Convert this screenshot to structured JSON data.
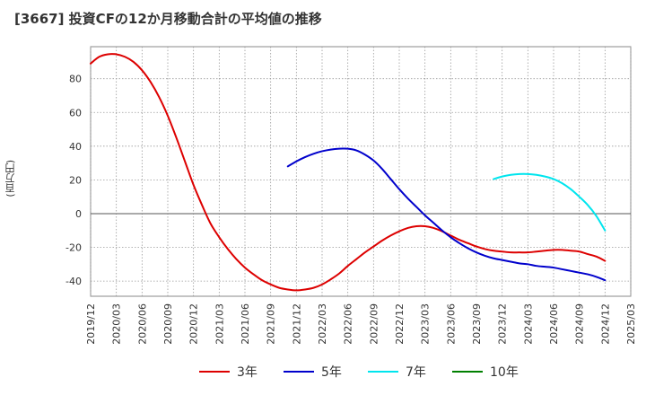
{
  "title": "[3667]  投資CFの12か月移動合計の平均値の推移",
  "chart_data": {
    "type": "line",
    "title": "[3667]  投資CFの12か月移動合計の平均値の推移",
    "ylabel": "(百万円)",
    "xlabel": "",
    "ylim": [
      -49,
      99
    ],
    "yticks": [
      -40,
      -20,
      0,
      20,
      40,
      60,
      80
    ],
    "xlim": [
      "2019/12",
      "2025/03"
    ],
    "xticks": [
      "2019/12",
      "2020/03",
      "2020/06",
      "2020/09",
      "2020/12",
      "2021/03",
      "2021/06",
      "2021/09",
      "2021/12",
      "2022/03",
      "2022/06",
      "2022/09",
      "2022/12",
      "2023/03",
      "2023/06",
      "2023/09",
      "2023/12",
      "2024/03",
      "2024/06",
      "2024/09",
      "2024/12",
      "2025/03"
    ],
    "grid": true,
    "legend_position": "bottom",
    "series": [
      {
        "name": "3年",
        "color": "#dd0000",
        "points": [
          [
            "2019/12",
            89
          ],
          [
            "2020/01",
            93
          ],
          [
            "2020/02",
            94.5
          ],
          [
            "2020/03",
            94.5
          ],
          [
            "2020/04",
            93
          ],
          [
            "2020/05",
            90
          ],
          [
            "2020/06",
            85
          ],
          [
            "2020/07",
            78
          ],
          [
            "2020/08",
            69
          ],
          [
            "2020/09",
            58
          ],
          [
            "2020/10",
            45
          ],
          [
            "2020/11",
            31
          ],
          [
            "2020/12",
            17
          ],
          [
            "2021/01",
            5
          ],
          [
            "2021/02",
            -6
          ],
          [
            "2021/03",
            -14
          ],
          [
            "2021/04",
            -21
          ],
          [
            "2021/05",
            -27
          ],
          [
            "2021/06",
            -32
          ],
          [
            "2021/07",
            -36
          ],
          [
            "2021/08",
            -39.5
          ],
          [
            "2021/09",
            -42
          ],
          [
            "2021/10",
            -44
          ],
          [
            "2021/11",
            -45
          ],
          [
            "2021/12",
            -45.5
          ],
          [
            "2022/01",
            -45
          ],
          [
            "2022/02",
            -44
          ],
          [
            "2022/03",
            -42
          ],
          [
            "2022/04",
            -39
          ],
          [
            "2022/05",
            -35.5
          ],
          [
            "2022/06",
            -31
          ],
          [
            "2022/07",
            -27
          ],
          [
            "2022/08",
            -23
          ],
          [
            "2022/09",
            -19.5
          ],
          [
            "2022/10",
            -16
          ],
          [
            "2022/11",
            -13
          ],
          [
            "2022/12",
            -10.5
          ],
          [
            "2023/01",
            -8.5
          ],
          [
            "2023/02",
            -7.5
          ],
          [
            "2023/03",
            -7.5
          ],
          [
            "2023/04",
            -8.5
          ],
          [
            "2023/05",
            -10.5
          ],
          [
            "2023/06",
            -13
          ],
          [
            "2023/07",
            -15.5
          ],
          [
            "2023/08",
            -17.5
          ],
          [
            "2023/09",
            -19.5
          ],
          [
            "2023/10",
            -21
          ],
          [
            "2023/11",
            -22
          ],
          [
            "2023/12",
            -22.5
          ],
          [
            "2024/01",
            -23
          ],
          [
            "2024/02",
            -23
          ],
          [
            "2024/03",
            -23
          ],
          [
            "2024/04",
            -22.5
          ],
          [
            "2024/05",
            -22
          ],
          [
            "2024/06",
            -21.5
          ],
          [
            "2024/07",
            -21.5
          ],
          [
            "2024/08",
            -22
          ],
          [
            "2024/09",
            -22.5
          ],
          [
            "2024/10",
            -24
          ],
          [
            "2024/11",
            -25.5
          ],
          [
            "2024/12",
            -28
          ]
        ]
      },
      {
        "name": "5年",
        "color": "#0000cc",
        "points": [
          [
            "2021/11",
            28
          ],
          [
            "2021/12",
            31
          ],
          [
            "2022/01",
            33.5
          ],
          [
            "2022/02",
            35.5
          ],
          [
            "2022/03",
            37
          ],
          [
            "2022/04",
            38
          ],
          [
            "2022/05",
            38.5
          ],
          [
            "2022/06",
            38.5
          ],
          [
            "2022/07",
            37.5
          ],
          [
            "2022/08",
            35
          ],
          [
            "2022/09",
            31.5
          ],
          [
            "2022/10",
            26.5
          ],
          [
            "2022/11",
            20.5
          ],
          [
            "2022/12",
            14.5
          ],
          [
            "2023/01",
            9
          ],
          [
            "2023/02",
            4
          ],
          [
            "2023/03",
            -1
          ],
          [
            "2023/04",
            -5.5
          ],
          [
            "2023/05",
            -10
          ],
          [
            "2023/06",
            -14
          ],
          [
            "2023/07",
            -17.5
          ],
          [
            "2023/08",
            -20.5
          ],
          [
            "2023/09",
            -23
          ],
          [
            "2023/10",
            -25
          ],
          [
            "2023/11",
            -26.5
          ],
          [
            "2023/12",
            -27.5
          ],
          [
            "2024/01",
            -28.5
          ],
          [
            "2024/02",
            -29.5
          ],
          [
            "2024/03",
            -30
          ],
          [
            "2024/04",
            -31
          ],
          [
            "2024/05",
            -31.5
          ],
          [
            "2024/06",
            -32
          ],
          [
            "2024/07",
            -33
          ],
          [
            "2024/08",
            -34
          ],
          [
            "2024/09",
            -35
          ],
          [
            "2024/10",
            -36
          ],
          [
            "2024/11",
            -37.5
          ],
          [
            "2024/12",
            -39.5
          ]
        ]
      },
      {
        "name": "7年",
        "color": "#00e5ee",
        "points": [
          [
            "2023/11",
            20.5
          ],
          [
            "2023/12",
            22
          ],
          [
            "2024/01",
            23
          ],
          [
            "2024/02",
            23.5
          ],
          [
            "2024/03",
            23.5
          ],
          [
            "2024/04",
            23
          ],
          [
            "2024/05",
            22
          ],
          [
            "2024/06",
            20.5
          ],
          [
            "2024/07",
            18
          ],
          [
            "2024/08",
            14.5
          ],
          [
            "2024/09",
            10
          ],
          [
            "2024/10",
            5
          ],
          [
            "2024/11",
            -1.5
          ],
          [
            "2024/12",
            -10
          ]
        ]
      },
      {
        "name": "10年",
        "color": "#008000",
        "points": []
      }
    ]
  }
}
